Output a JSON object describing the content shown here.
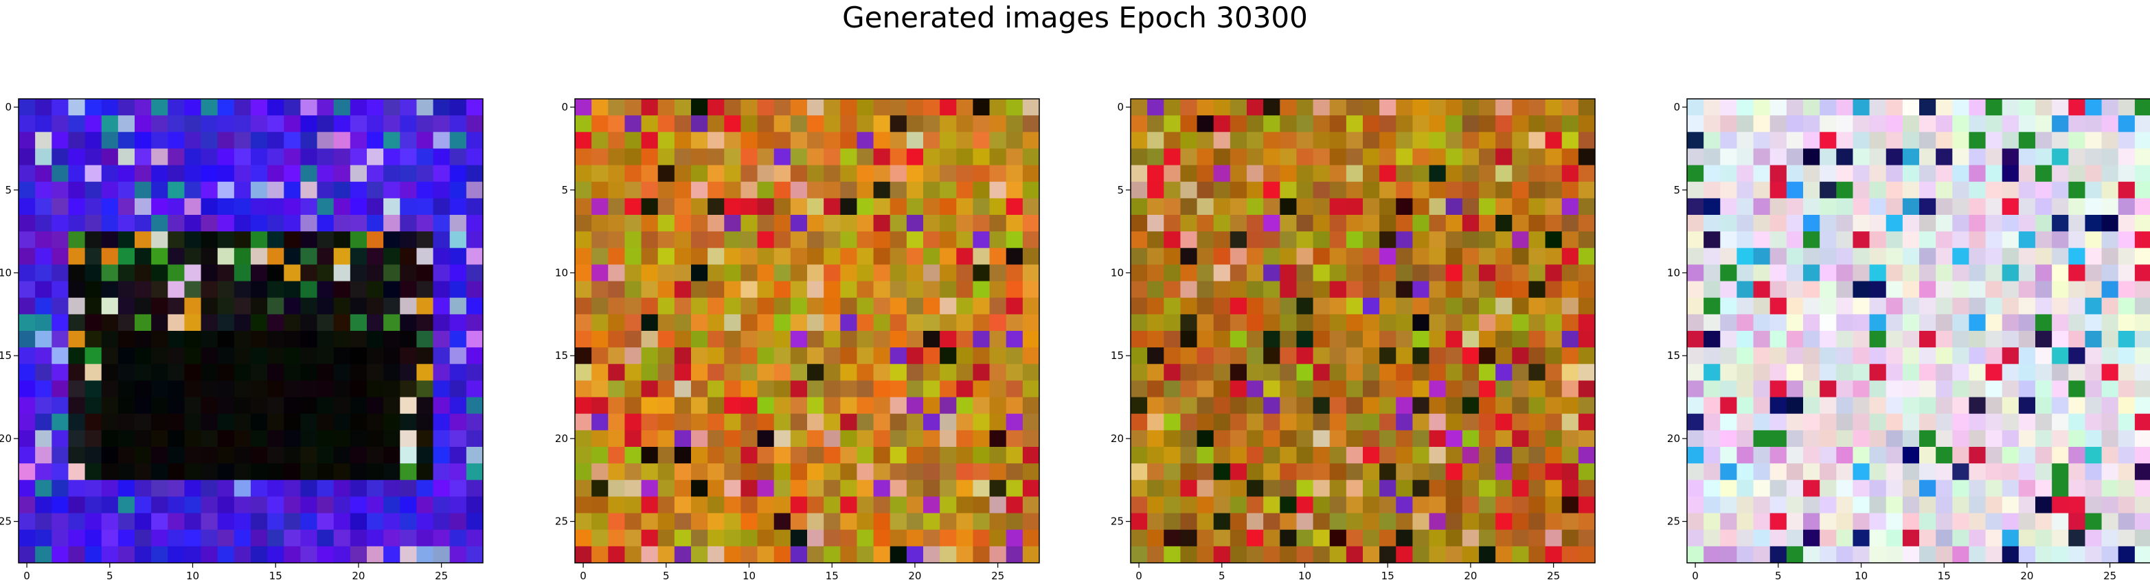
{
  "figure": {
    "title": "Generated images Epoch 30300"
  },
  "chart_data": {
    "type": "heatmap",
    "title": "Generated images Epoch 30300",
    "grid_size": [
      28,
      28
    ],
    "x_ticks": [
      "0",
      "5",
      "10",
      "15",
      "20",
      "25"
    ],
    "y_ticks": [
      "0",
      "5",
      "10",
      "15",
      "20",
      "25"
    ],
    "xlim": [
      -0.5,
      27.5
    ],
    "ylim": [
      27.5,
      -0.5
    ],
    "grid": false,
    "panels": [
      {
        "palette": "blue-purple border, dark center, sparse bright pixels",
        "dominant_colors": [
          "#2a10d8",
          "#5530e8",
          "#0a0a0a",
          "#c8c0d8"
        ]
      },
      {
        "palette": "ochre / amber texture with mixed accents",
        "dominant_colors": [
          "#c08a10",
          "#d6a020",
          "#8a6018",
          "#b02030"
        ]
      },
      {
        "palette": "ochre / amber texture, slightly darker",
        "dominant_colors": [
          "#b8820e",
          "#d29a1c",
          "#7a5a12",
          "#c01e30"
        ]
      },
      {
        "palette": "pastel light noise with scattered saturated pixels",
        "dominant_colors": [
          "#e6e0f0",
          "#c8d8e8",
          "#f0e0e8",
          "#202060"
        ]
      }
    ]
  }
}
